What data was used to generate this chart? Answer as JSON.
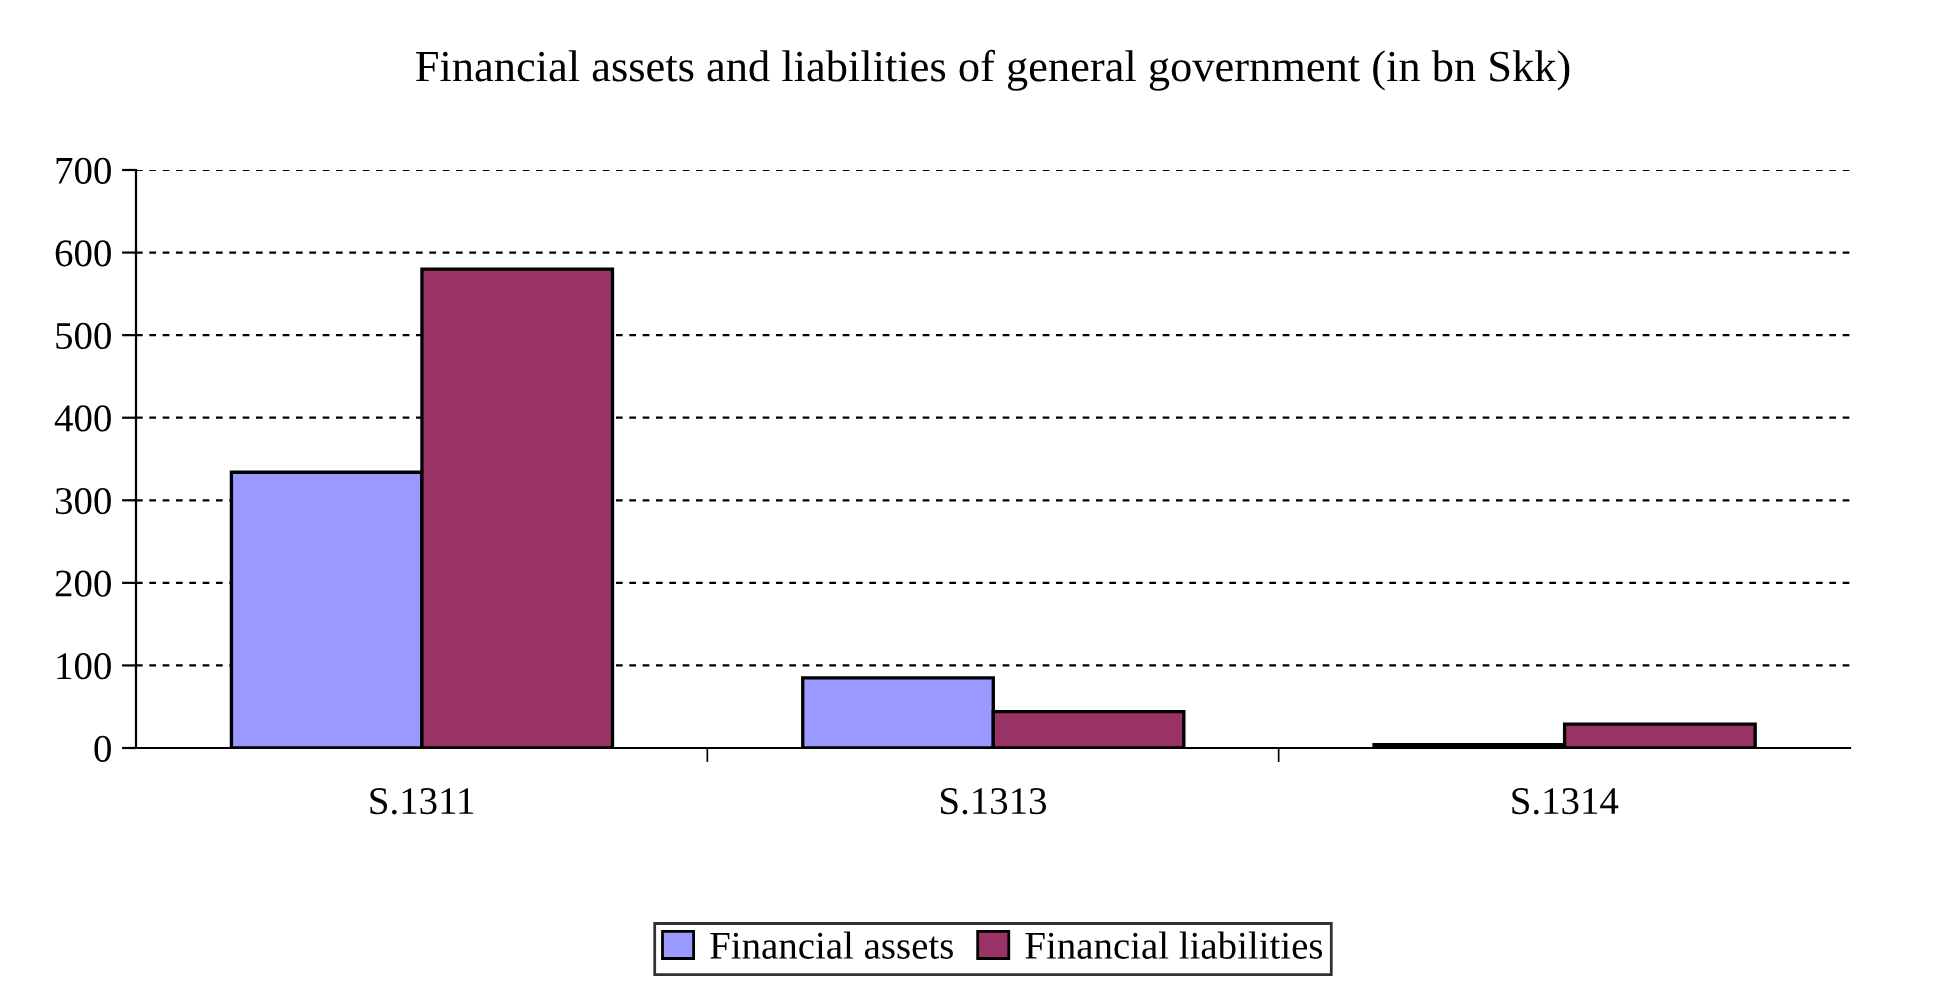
{
  "chart_data": {
    "type": "bar",
    "title": "Financial assets and liabilities of general government (in bn Skk)",
    "categories": [
      "S.1311",
      "S.1313",
      "S.1314"
    ],
    "series": [
      {
        "name": "Financial assets",
        "color": "#9999ff",
        "values": [
          334,
          85,
          4
        ]
      },
      {
        "name": "Financial liabilities",
        "color": "#993366",
        "values": [
          580,
          44,
          29
        ]
      }
    ],
    "ylim": [
      0,
      700
    ],
    "yticks": [
      0,
      100,
      200,
      300,
      400,
      500,
      600,
      700
    ],
    "grid": "y",
    "legend": "bottom"
  }
}
